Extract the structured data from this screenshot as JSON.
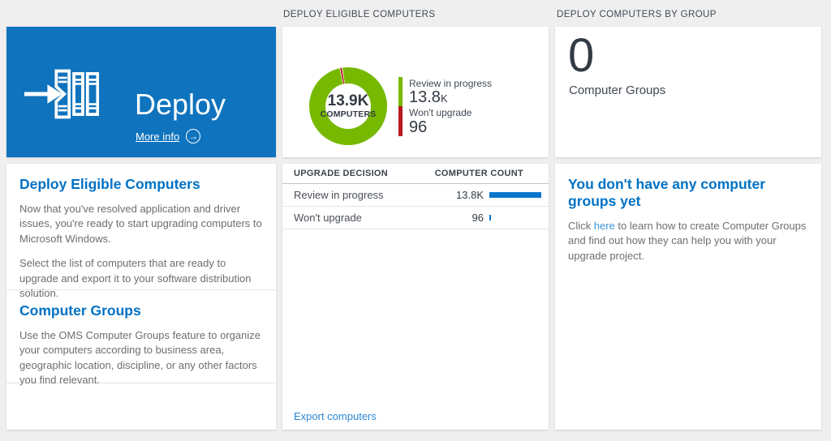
{
  "colors": {
    "tile_blue": "#0f73bd",
    "accent_blue": "#0072c6",
    "light_link_blue": "#3e97d4",
    "export_link_blue": "#2b87d3",
    "bar_blue": "#0c76cd",
    "green": "#76b900",
    "red": "#b81a20",
    "dark_text": "#333b44",
    "body_text": "#6e6e6e"
  },
  "middle_header": "DEPLOY ELIGIBLE COMPUTERS",
  "right_header": "DEPLOY COMPUTERS BY GROUP",
  "left_column": {
    "tile": {
      "title": "Deploy",
      "more_info_label": "More info"
    },
    "sections": [
      {
        "heading": "Deploy Eligible Computers",
        "paragraphs": [
          "Now that you've resolved application and driver issues, you're ready to start upgrading computers to Microsoft Windows.",
          "Select the list of computers that are ready to upgrade and export it to your software distribution solution."
        ]
      },
      {
        "heading": "Computer Groups",
        "paragraphs": [
          "Use the OMS Computer Groups feature to organize your computers according to business area, geographic location, discipline, or any other factors you find relevant."
        ]
      }
    ]
  },
  "middle_column": {
    "donut": {
      "center_value": "13.9K",
      "center_label": "COMPUTERS",
      "legend": [
        {
          "label": "Review in progress",
          "value": "13.8",
          "suffix": "K"
        },
        {
          "label": "Won't upgrade",
          "value": "96",
          "suffix": ""
        }
      ]
    },
    "table": {
      "columns": [
        "UPGRADE DECISION",
        "COMPUTER COUNT"
      ],
      "rows": [
        {
          "decision": "Review in progress",
          "count_display": "13.8K",
          "value": 13800
        },
        {
          "decision": "Won't upgrade",
          "count_display": "96",
          "value": 96
        }
      ]
    },
    "export_link": "Export computers"
  },
  "right_column": {
    "group_count": "0",
    "group_count_label": "Computer Groups",
    "empty_state": {
      "heading": "You don't have any computer groups yet",
      "text_before_link": "Click ",
      "link_text": "here",
      "text_after_link": " to learn how to create Computer Groups and find out how they can help you with your upgrade project."
    }
  },
  "chart_data": {
    "type": "pie",
    "donut": true,
    "title": "DEPLOY ELIGIBLE COMPUTERS",
    "center_text": [
      "13.9K",
      "COMPUTERS"
    ],
    "slices": [
      {
        "label": "Review in progress",
        "value": 13800,
        "display": "13.8K",
        "color": "#76b900"
      },
      {
        "label": "Won't upgrade",
        "value": 96,
        "display": "96",
        "color": "#b81a20"
      }
    ],
    "legend_position": "right"
  }
}
